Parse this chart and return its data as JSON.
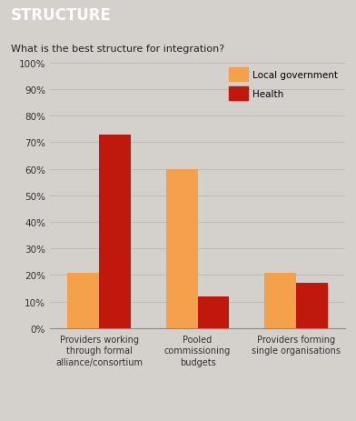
{
  "title": "STRUCTURE",
  "subtitle": "What is the best structure for integration?",
  "categories": [
    "Providers working\nthrough formal\nalliance/consortium",
    "Pooled\ncommissioning\nbudgets",
    "Providers forming\nsingle organisations"
  ],
  "local_government": [
    21,
    60,
    21
  ],
  "health": [
    73,
    12,
    17
  ],
  "local_gov_color": "#F5A04A",
  "health_color": "#C0180C",
  "background_color": "#D4D0CC",
  "title_bg_color": "#4A6070",
  "title_color": "#FFFFFF",
  "ylim": [
    0,
    100
  ],
  "yticks": [
    0,
    10,
    20,
    30,
    40,
    50,
    60,
    70,
    80,
    90,
    100
  ],
  "ytick_labels": [
    "0%",
    "10%",
    "20%",
    "30%",
    "40%",
    "50%",
    "60%",
    "70%",
    "80%",
    "90%",
    "100%"
  ],
  "legend_local_gov": "Local government",
  "legend_health": "Health",
  "bar_width": 0.32,
  "group_positions": [
    0.5,
    1.5,
    2.5
  ]
}
